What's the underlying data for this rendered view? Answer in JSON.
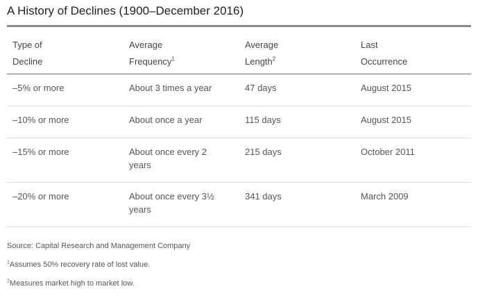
{
  "title": "A History of Declines (1900–December 2016)",
  "headers": {
    "type_line1": "Type of",
    "type_line2": "Decline",
    "freq_line1": "Average",
    "freq_line2": "Frequency",
    "freq_sup": "1",
    "len_line1": "Average",
    "len_line2": "Length",
    "len_sup": "2",
    "last_line1": "Last",
    "last_line2": "Occurrence"
  },
  "rows": [
    {
      "type": "–5% or more",
      "frequency_line1": "About 3 times a year",
      "frequency_line2": "",
      "length": "47 days",
      "last": "August 2015"
    },
    {
      "type": "–10% or more",
      "frequency_line1": "About once a year",
      "frequency_line2": "",
      "length": "115 days",
      "last": "August 2015"
    },
    {
      "type": "–15% or more",
      "frequency_line1": "About once every 2",
      "frequency_line2": "years",
      "length": "215 days",
      "last": "October 2011"
    },
    {
      "type": "–20% or more",
      "frequency_line1": "About once every 3½",
      "frequency_line2": "years",
      "length": "341 days",
      "last": "March 2009"
    }
  ],
  "notes": {
    "source": "Source: Capital Research and Management Company",
    "note1_sup": "1",
    "note1": "Assumes 50% recovery rate of lost value.",
    "note2_sup": "2",
    "note2": "Measures market high to market low."
  }
}
